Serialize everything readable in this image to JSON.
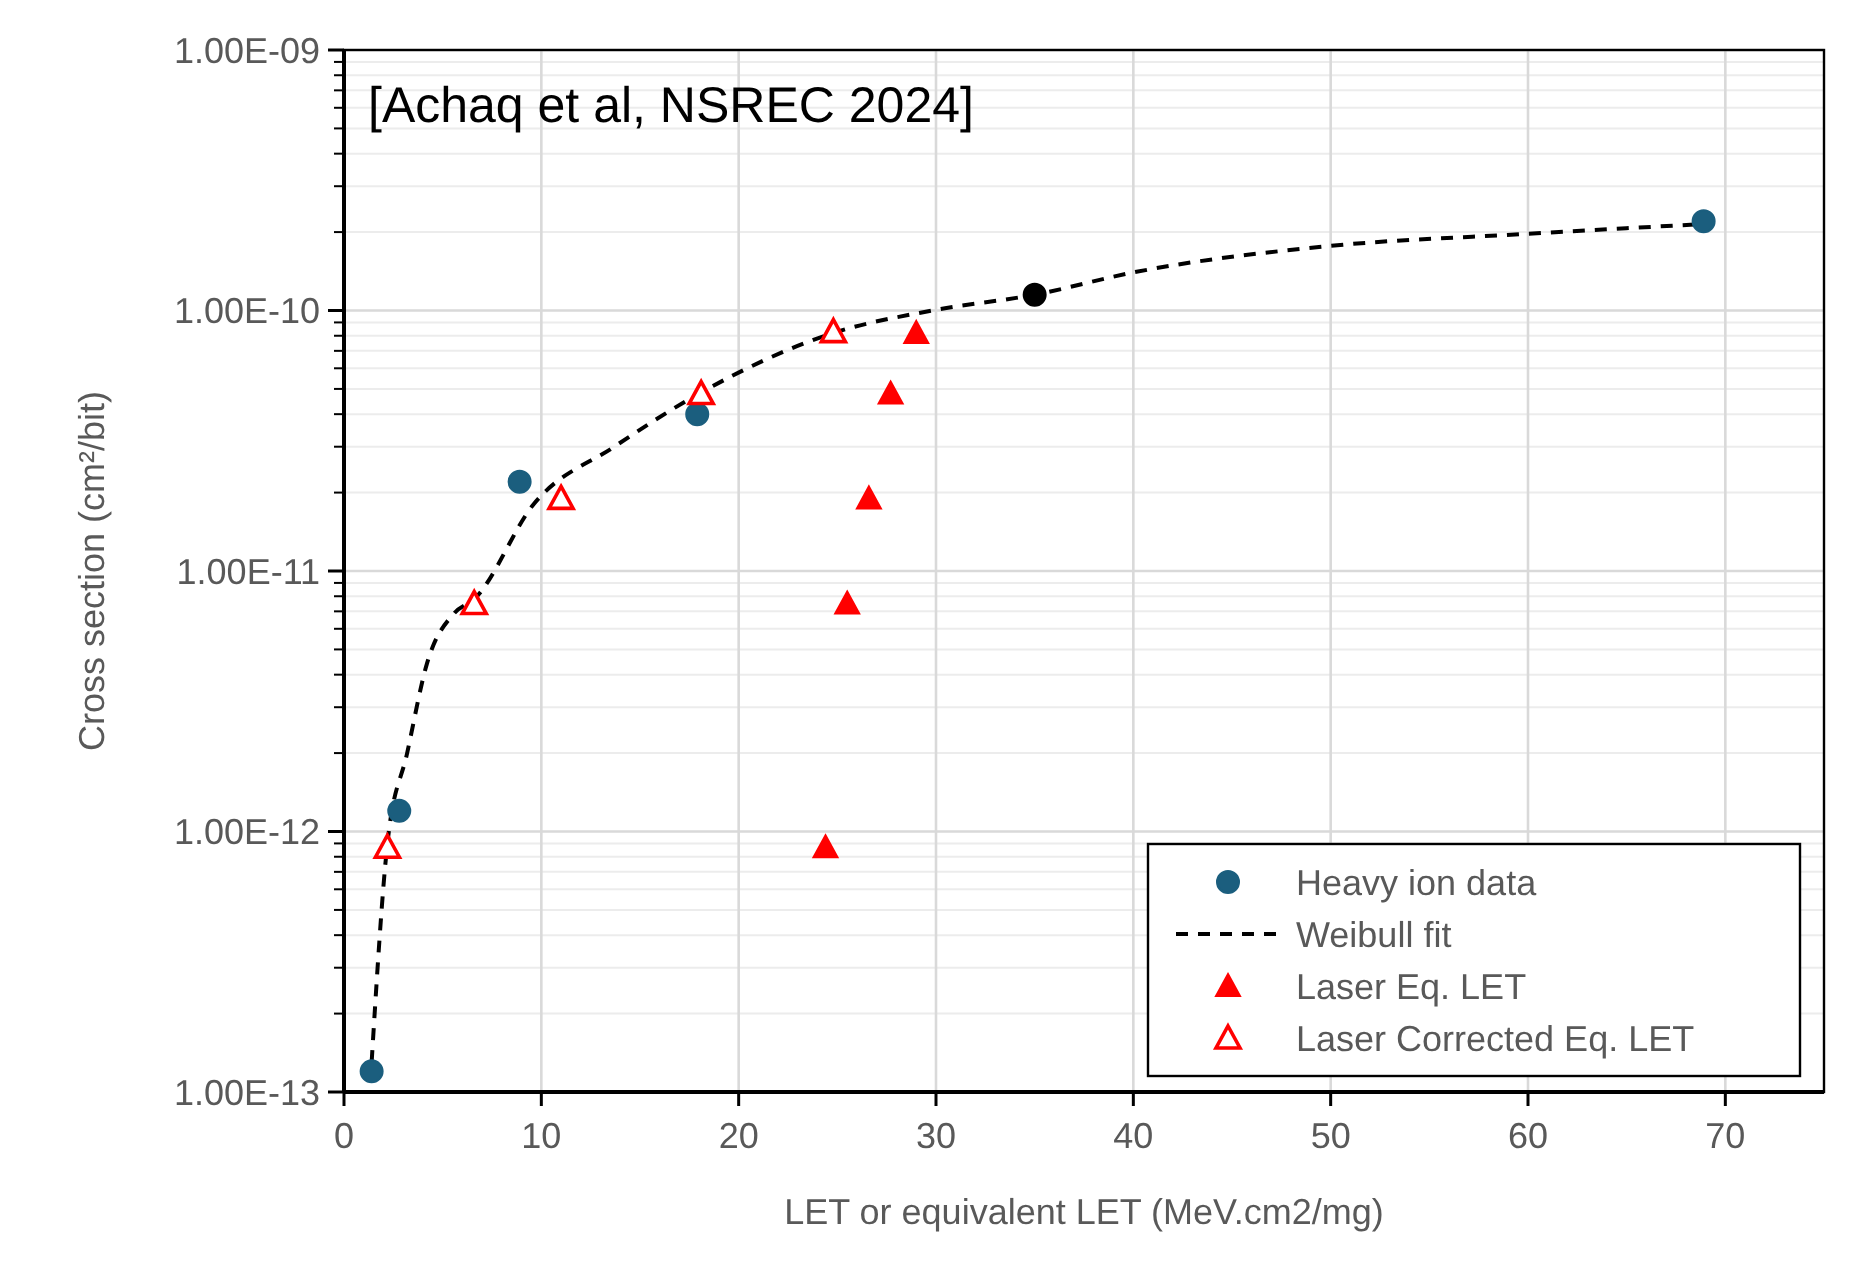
{
  "chart_data": {
    "type": "scatter",
    "xlabel": "LET or equivalent LET (MeV.cm2/mg)",
    "ylabel": "Cross section (cm²/bit)",
    "annotations": [
      "[Achaq et al, NSREC 2024]"
    ],
    "log": "y",
    "grid": true,
    "legend": "bottom right",
    "xlim": [
      0,
      75
    ],
    "xticks": [
      0,
      10,
      20,
      30,
      40,
      50,
      60,
      70
    ],
    "ylim": [
      1e-13,
      1e-09
    ],
    "yticks": [
      {
        "value": 1e-13,
        "label": "1.00E-13"
      },
      {
        "value": 1e-12,
        "label": "1.00E-12"
      },
      {
        "value": 1e-11,
        "label": "1.00E-11"
      },
      {
        "value": 1e-10,
        "label": "1.00E-10"
      },
      {
        "value": 1e-09,
        "label": "1.00E-09"
      }
    ],
    "series": [
      {
        "name": "Heavy ion data",
        "marker": "circle",
        "color": "#1b5e7e",
        "colors": [
          "#1b5e7e",
          "#1b5e7e",
          "#1b5e7e",
          "#1b5e7e",
          "#000000",
          "#1b5e7e"
        ],
        "x": [
          1.4,
          2.8,
          8.9,
          17.9,
          35,
          68.9
        ],
        "values": [
          1.2e-13,
          1.2e-12,
          2.2e-11,
          4e-11,
          1.15e-10,
          2.2e-10
        ]
      },
      {
        "name": "Weibull fit",
        "type": "line",
        "marker": "none",
        "line_style": "dashed",
        "color": "#000000",
        "x": [
          1.4,
          2.2,
          3.2,
          4.2,
          5.6,
          6.6,
          9.6,
          13.7,
          18,
          24.8,
          29.8,
          35,
          40,
          50,
          60,
          69
        ],
        "values": [
          1.3e-13,
          9e-13,
          2e-12,
          4.4e-12,
          6.9e-12,
          7.8e-12,
          1.8e-11,
          3e-11,
          4.8e-11,
          8.2e-11,
          1e-10,
          1.15e-10,
          1.4e-10,
          1.77e-10,
          1.97e-10,
          2.15e-10
        ]
      },
      {
        "name": "Laser Eq. LET",
        "marker": "triangle",
        "color": "#ff0000",
        "x": [
          24.4,
          25.5,
          26.6,
          27.7,
          29
        ],
        "values": [
          8.7e-13,
          7.5e-12,
          1.9e-11,
          4.8e-11,
          8.2e-11
        ]
      },
      {
        "name": "Laser Corrected Eq. LET",
        "marker": "triangle",
        "color": "#ff0000",
        "x": [
          2.2,
          6.6,
          11,
          18.1,
          24.8
        ],
        "values": [
          8.7e-13,
          7.5e-12,
          1.9e-11,
          4.8e-11,
          8.3e-11
        ]
      }
    ]
  }
}
